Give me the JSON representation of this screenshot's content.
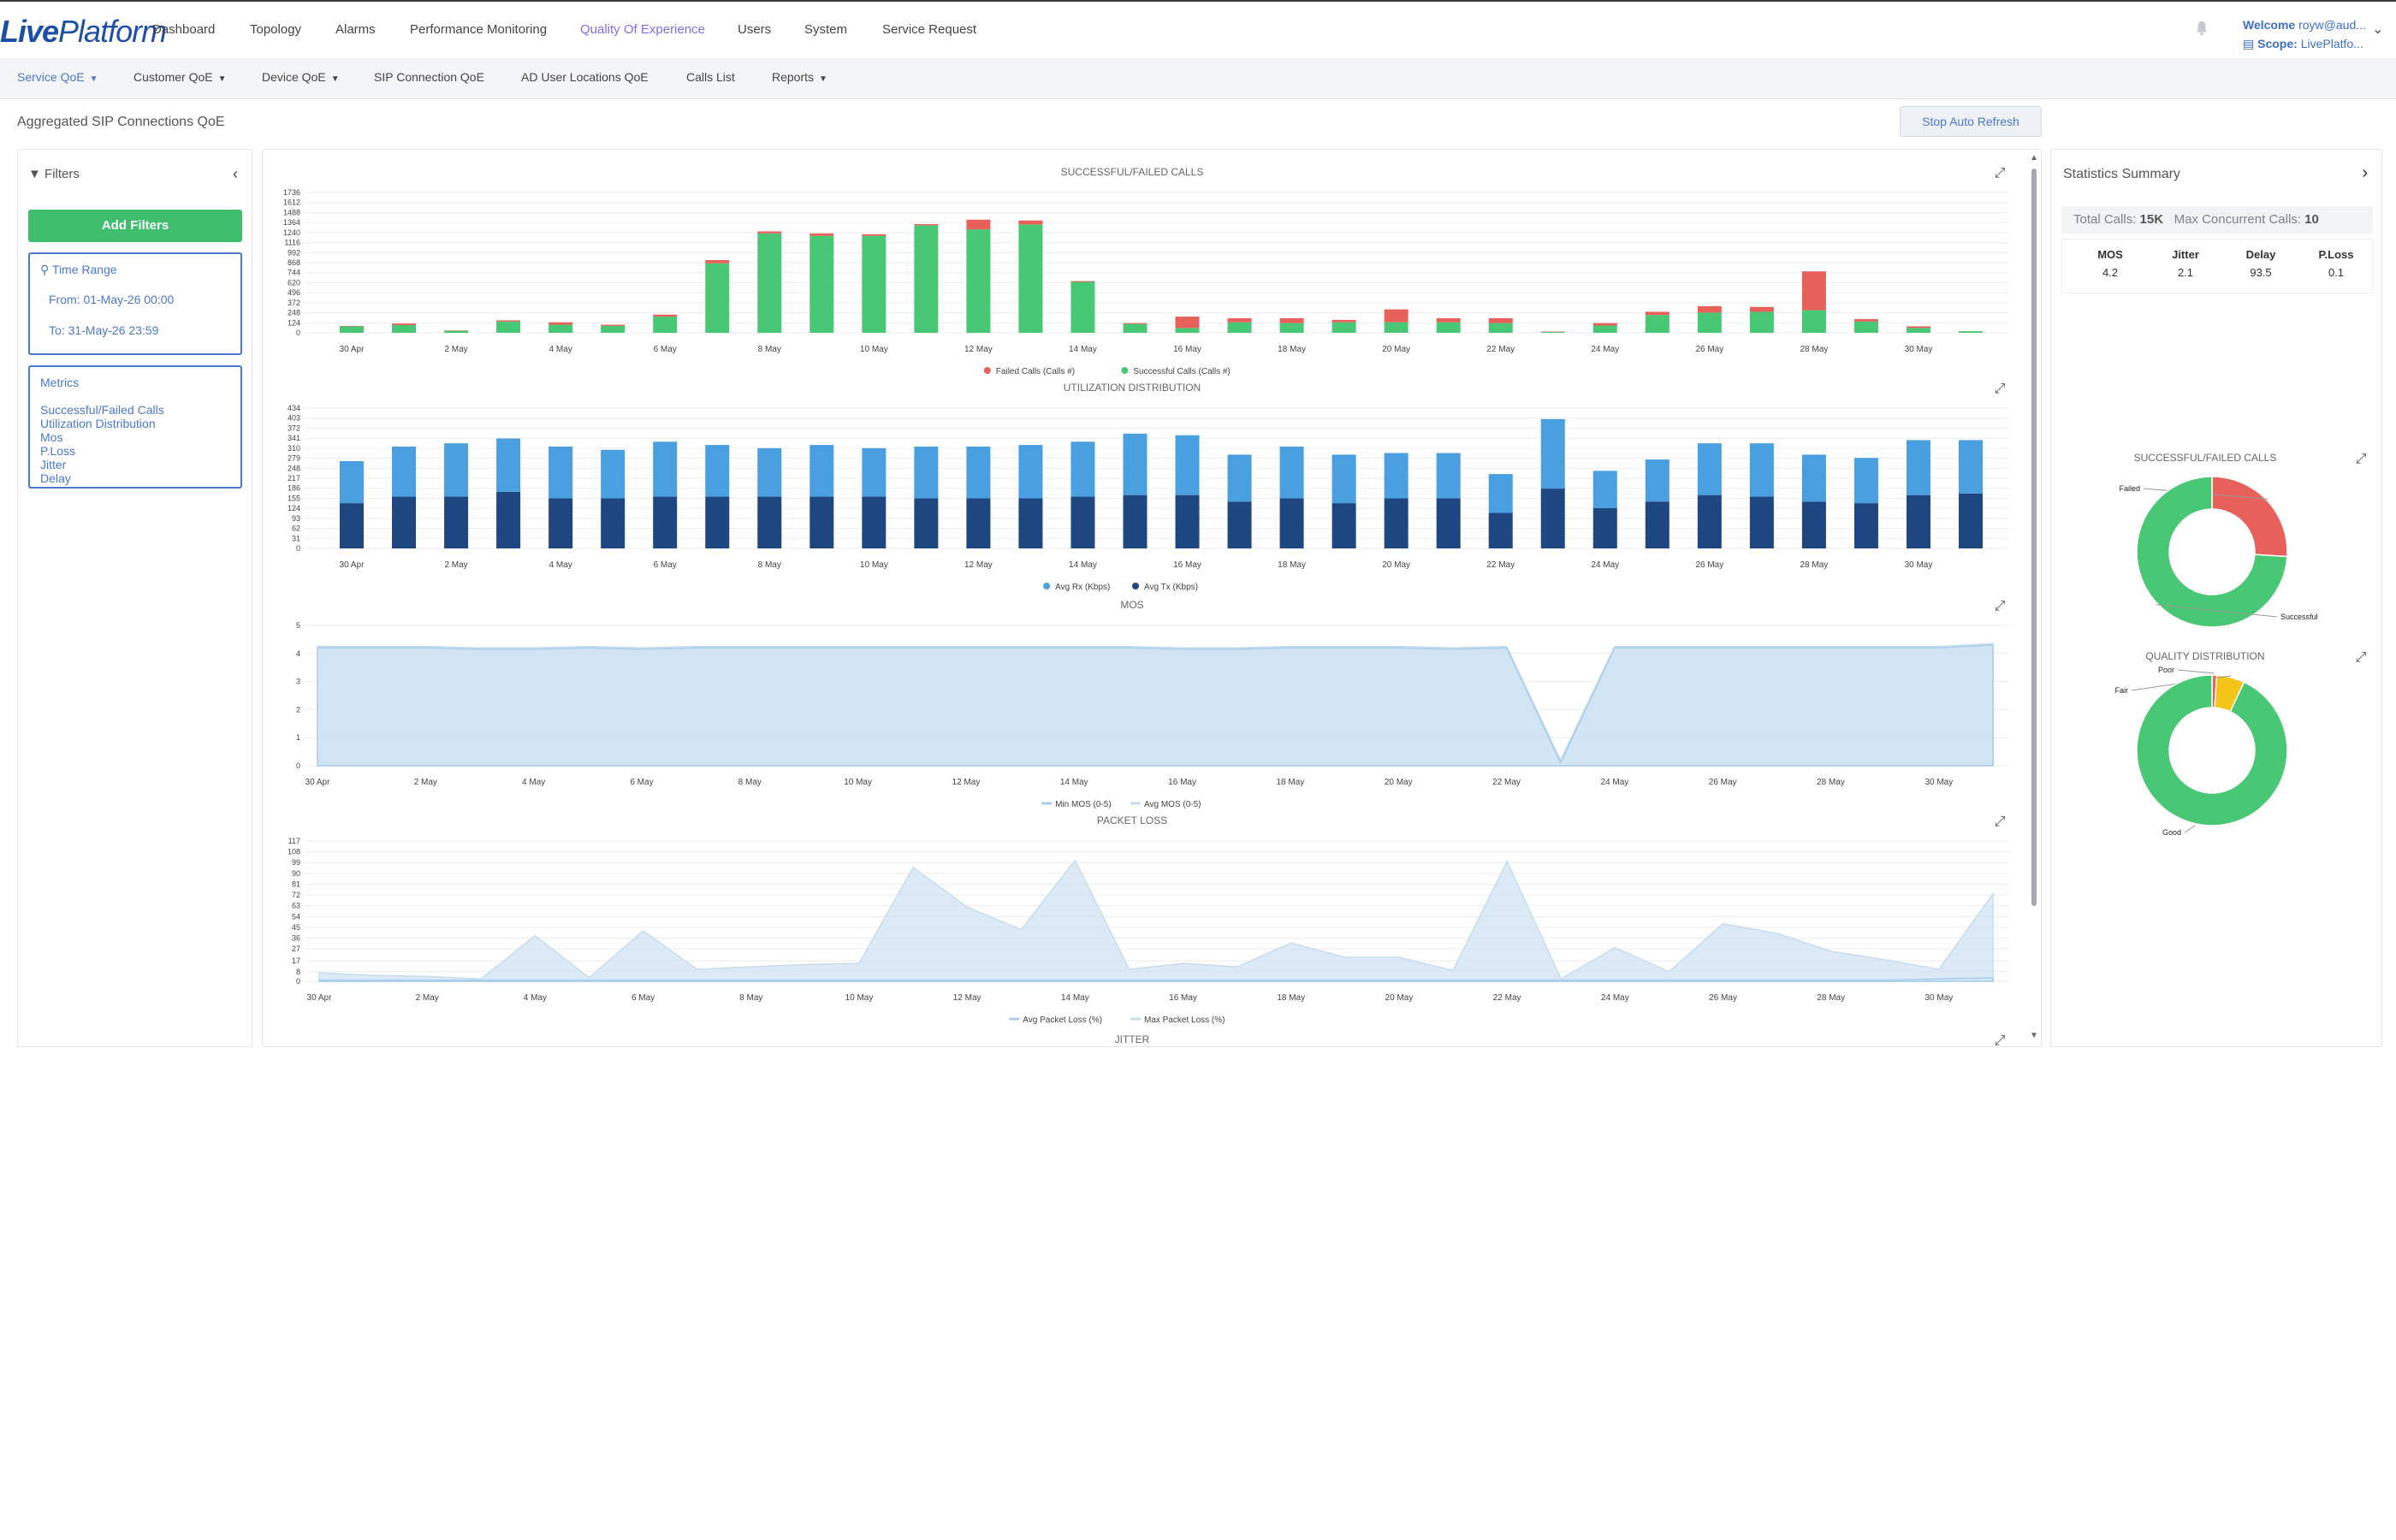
{
  "app": {
    "logo_prefix": "Live",
    "logo_suffix": "Platform"
  },
  "main_nav": [
    {
      "label": "Dashboard"
    },
    {
      "label": "Topology"
    },
    {
      "label": "Alarms"
    },
    {
      "label": "Performance Monitoring"
    },
    {
      "label": "Quality Of Experience",
      "active": true
    },
    {
      "label": "Users"
    },
    {
      "label": "System"
    },
    {
      "label": "Service Request"
    }
  ],
  "user": {
    "welcome_label": "Welcome",
    "welcome_value": "royw@aud...",
    "scope_label": "Scope:",
    "scope_value": "LivePlatfo..."
  },
  "sub_nav": [
    {
      "label": "Service QoE",
      "caret": true,
      "active": true
    },
    {
      "label": "Customer QoE",
      "caret": true
    },
    {
      "label": "Device QoE",
      "caret": true
    },
    {
      "label": "SIP Connection QoE"
    },
    {
      "label": "AD User Locations QoE"
    },
    {
      "label": "Calls List"
    },
    {
      "label": "Reports",
      "caret": true
    }
  ],
  "page": {
    "title": "Aggregated SIP Connections QoE",
    "stop_refresh": "Stop Auto Refresh"
  },
  "filters": {
    "header": "Filters",
    "add_button": "Add Filters",
    "time_range": {
      "title": "Time Range",
      "from": "From: 01-May-26 00:00",
      "to": "To:    31-May-26 23:59"
    },
    "metrics": {
      "title": "Metrics",
      "items": [
        "Successful/Failed Calls",
        "Utilization Distribution",
        "Mos",
        "P.Loss",
        "Jitter",
        "Delay"
      ]
    }
  },
  "stats": {
    "header": "Statistics Summary",
    "total_calls_label": "Total Calls:",
    "total_calls": "15K",
    "max_concurrent_label": "Max Concurrent Calls:",
    "max_concurrent": "10",
    "kpis": [
      {
        "name": "MOS",
        "value": "4.2"
      },
      {
        "name": "Jitter",
        "value": "2.1"
      },
      {
        "name": "Delay",
        "value": "93.5"
      },
      {
        "name": "P.Loss",
        "value": "0.1"
      }
    ]
  },
  "colors": {
    "failed": "#e8605a",
    "successful": "#48c774",
    "rx": "#4a9fe0",
    "tx": "#1e4680",
    "area": "#cfe3f3",
    "area_line": "#a9cdea",
    "poor": "#e8605a",
    "fair": "#f2c518",
    "good": "#48c774",
    "accent": "#4a78d0"
  },
  "chart_data": [
    {
      "type": "bar",
      "title": "SUCCESSFUL/FAILED CALLS",
      "x_ticks": [
        "30 Apr",
        "2 May",
        "4 May",
        "6 May",
        "8 May",
        "10 May",
        "12 May",
        "14 May",
        "16 May",
        "18 May",
        "20 May",
        "22 May",
        "24 May",
        "26 May",
        "28 May",
        "30 May"
      ],
      "y_ticks": [
        0,
        124,
        248,
        372,
        496,
        620,
        744,
        868,
        992,
        1116,
        1240,
        1364,
        1488,
        1612,
        1736
      ],
      "ylim": [
        0,
        1736
      ],
      "stacked": true,
      "series": [
        {
          "name": "Failed Calls (Calls #)",
          "color_key": "failed",
          "values": [
            5,
            20,
            5,
            15,
            30,
            15,
            25,
            40,
            25,
            30,
            20,
            15,
            120,
            50,
            10,
            10,
            140,
            50,
            60,
            30,
            160,
            50,
            60,
            5,
            30,
            40,
            80,
            60,
            480,
            30,
            20,
            0
          ]
        },
        {
          "name": "Successful Calls (Calls #)",
          "color_key": "successful",
          "values": [
            80,
            95,
            25,
            140,
            100,
            85,
            200,
            860,
            1230,
            1200,
            1200,
            1330,
            1280,
            1340,
            630,
            110,
            60,
            130,
            120,
            130,
            130,
            130,
            120,
            10,
            90,
            220,
            250,
            260,
            280,
            140,
            60,
            20
          ]
        }
      ]
    },
    {
      "type": "bar",
      "title": "UTILIZATION DISTRIBUTION",
      "x_ticks": [
        "30 Apr",
        "2 May",
        "4 May",
        "6 May",
        "8 May",
        "10 May",
        "12 May",
        "14 May",
        "16 May",
        "18 May",
        "20 May",
        "22 May",
        "24 May",
        "26 May",
        "28 May",
        "30 May"
      ],
      "y_ticks": [
        0,
        31,
        62,
        93,
        124,
        155,
        186,
        217,
        248,
        279,
        310,
        341,
        372,
        403,
        434
      ],
      "ylim": [
        0,
        434
      ],
      "stacked": true,
      "series": [
        {
          "name": "Avg Rx (Kbps)",
          "color_key": "rx",
          "values": [
            130,
            155,
            165,
            165,
            160,
            150,
            170,
            160,
            150,
            160,
            150,
            160,
            160,
            165,
            170,
            190,
            185,
            145,
            160,
            150,
            140,
            140,
            120,
            215,
            115,
            130,
            160,
            165,
            145,
            140,
            170,
            165
          ]
        },
        {
          "name": "Avg Tx (Kbps)",
          "color_key": "tx",
          "values": [
            140,
            160,
            160,
            175,
            155,
            155,
            160,
            160,
            160,
            160,
            160,
            155,
            155,
            155,
            160,
            165,
            165,
            145,
            155,
            140,
            155,
            155,
            110,
            185,
            125,
            145,
            165,
            160,
            145,
            140,
            165,
            170
          ]
        }
      ]
    },
    {
      "type": "area",
      "title": "MOS",
      "x_ticks": [
        "30 Apr",
        "2 May",
        "4 May",
        "6 May",
        "8 May",
        "10 May",
        "12 May",
        "14 May",
        "16 May",
        "18 May",
        "20 May",
        "22 May",
        "24 May",
        "26 May",
        "28 May",
        "30 May"
      ],
      "y_ticks": [
        0,
        1,
        2,
        3,
        4,
        5
      ],
      "ylim": [
        0,
        5
      ],
      "series": [
        {
          "name": "Min MOS (0-5)",
          "values": [
            4.2,
            4.2,
            4.2,
            4.15,
            4.15,
            4.2,
            4.15,
            4.2,
            4.2,
            4.2,
            4.2,
            4.2,
            4.2,
            4.2,
            4.2,
            4.2,
            4.15,
            4.15,
            4.2,
            4.2,
            4.2,
            4.15,
            4.2,
            0.1,
            4.2,
            4.2,
            4.2,
            4.2,
            4.2,
            4.2,
            4.2,
            4.3
          ]
        },
        {
          "name": "Avg MOS (0-5)",
          "values": [
            4.25,
            4.25,
            4.25,
            4.2,
            4.2,
            4.25,
            4.2,
            4.25,
            4.25,
            4.25,
            4.25,
            4.25,
            4.25,
            4.25,
            4.25,
            4.25,
            4.2,
            4.2,
            4.25,
            4.25,
            4.25,
            4.2,
            4.25,
            0.2,
            4.25,
            4.25,
            4.25,
            4.25,
            4.25,
            4.25,
            4.25,
            4.35
          ]
        }
      ]
    },
    {
      "type": "area",
      "title": "PACKET LOSS",
      "x_ticks": [
        "30 Apr",
        "2 May",
        "4 May",
        "6 May",
        "8 May",
        "10 May",
        "12 May",
        "14 May",
        "16 May",
        "18 May",
        "20 May",
        "22 May",
        "24 May",
        "26 May",
        "28 May",
        "30 May"
      ],
      "y_ticks": [
        0,
        8,
        17,
        27,
        36,
        45,
        54,
        63,
        72,
        81,
        90,
        99,
        108,
        117
      ],
      "ylim": [
        0,
        117
      ],
      "series": [
        {
          "name": "Avg Packet Loss (%)",
          "values": [
            1,
            1,
            1,
            1,
            1,
            1,
            1,
            1,
            1,
            1,
            1,
            1,
            1,
            1,
            1,
            1,
            1,
            1,
            1,
            1,
            1,
            1,
            1,
            1,
            1,
            1,
            1,
            1,
            1,
            1,
            2,
            3
          ]
        },
        {
          "name": "Max Packet Loss (%)",
          "values": [
            7,
            5,
            4,
            2,
            38,
            3,
            42,
            10,
            12,
            14,
            15,
            95,
            62,
            43,
            101,
            10,
            15,
            12,
            32,
            20,
            20,
            9,
            100,
            2,
            28,
            8,
            48,
            40,
            25,
            18,
            10,
            73
          ]
        }
      ]
    },
    {
      "type": "pie",
      "title": "SUCCESSFUL/FAILED CALLS",
      "labels": [
        "Failed",
        "Successful"
      ],
      "values": [
        26,
        74
      ],
      "color_keys": [
        "failed",
        "successful"
      ]
    },
    {
      "type": "pie",
      "title": "QUALITY DISTRIBUTION",
      "labels": [
        "Poor",
        "Fair",
        "Good"
      ],
      "values": [
        1,
        6,
        93
      ],
      "color_keys": [
        "poor",
        "fair",
        "good"
      ]
    }
  ],
  "jitter_title": "JITTER"
}
